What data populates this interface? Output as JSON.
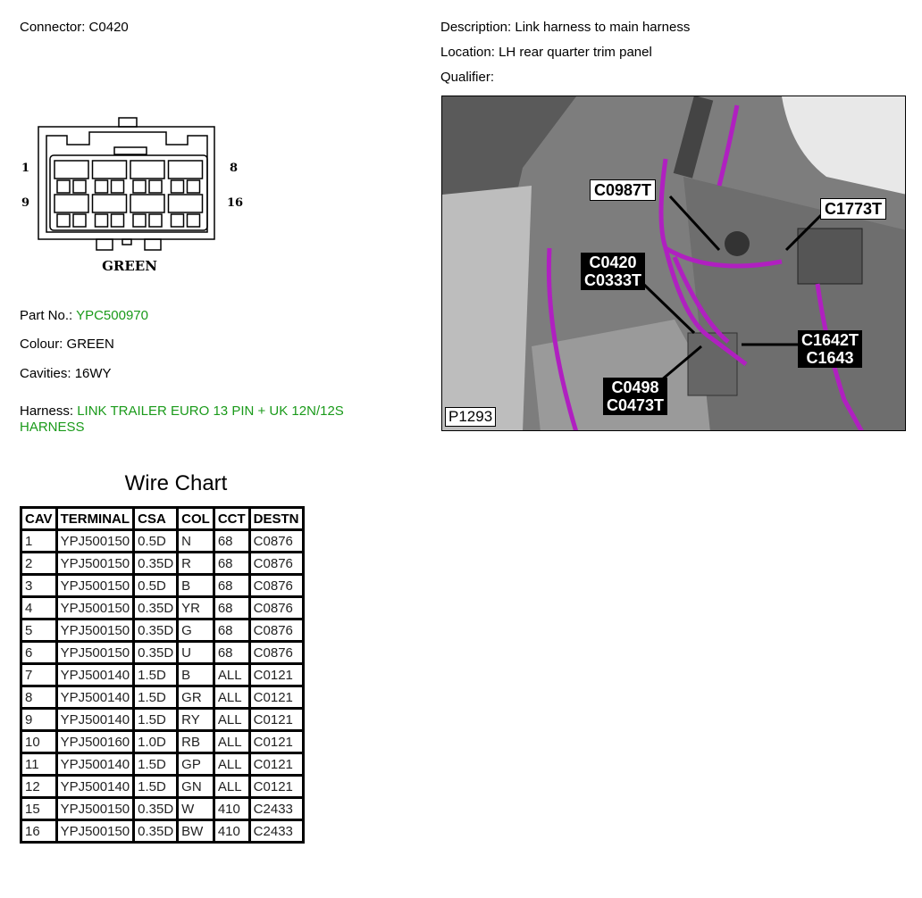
{
  "connector": {
    "label": "Connector:",
    "value": "C0420",
    "pin_labels": [
      "1",
      "8",
      "9",
      "16"
    ],
    "colour_caption": "GREEN"
  },
  "description": {
    "label": "Description:",
    "value": "Link harness to main harness"
  },
  "location": {
    "label": "Location:",
    "value": "LH rear quarter trim panel"
  },
  "qualifier": {
    "label": "Qualifier:",
    "value": ""
  },
  "part_no": {
    "label": "Part No.:",
    "value": "YPC500970"
  },
  "colour": {
    "label": "Colour:",
    "value": "GREEN"
  },
  "cavities": {
    "label": "Cavities:",
    "value": "16WY"
  },
  "harness": {
    "label": "Harness:",
    "value_line1": "LINK TRAILER EURO 13 PIN + UK 12N/12S",
    "value_line2": "HARNESS"
  },
  "photo": {
    "ref": "P1293",
    "labels": [
      {
        "lines": [
          "C0987T"
        ],
        "style": "white"
      },
      {
        "lines": [
          "C1773T"
        ],
        "style": "white"
      },
      {
        "lines": [
          "C0420",
          "C0333T"
        ],
        "style": "black"
      },
      {
        "lines": [
          "C1642T",
          "C1643"
        ],
        "style": "black"
      },
      {
        "lines": [
          "C0498",
          "C0473T"
        ],
        "style": "black"
      }
    ],
    "colors": {
      "harness": "#b020c0",
      "body": "#8a8a8a"
    }
  },
  "wire_chart": {
    "title": "Wire Chart",
    "columns": [
      "CAV",
      "TERMINAL",
      "CSA",
      "COL",
      "CCT",
      "DESTN"
    ],
    "rows": [
      [
        "1",
        "YPJ500150",
        "0.5D",
        "N",
        "68",
        "C0876"
      ],
      [
        "2",
        "YPJ500150",
        "0.35D",
        "R",
        "68",
        "C0876"
      ],
      [
        "3",
        "YPJ500150",
        "0.5D",
        "B",
        "68",
        "C0876"
      ],
      [
        "4",
        "YPJ500150",
        "0.35D",
        "YR",
        "68",
        "C0876"
      ],
      [
        "5",
        "YPJ500150",
        "0.35D",
        "G",
        "68",
        "C0876"
      ],
      [
        "6",
        "YPJ500150",
        "0.35D",
        "U",
        "68",
        "C0876"
      ],
      [
        "7",
        "YPJ500140",
        "1.5D",
        "B",
        "ALL",
        "C0121"
      ],
      [
        "8",
        "YPJ500140",
        "1.5D",
        "GR",
        "ALL",
        "C0121"
      ],
      [
        "9",
        "YPJ500140",
        "1.5D",
        "RY",
        "ALL",
        "C0121"
      ],
      [
        "10",
        "YPJ500160",
        "1.0D",
        "RB",
        "ALL",
        "C0121"
      ],
      [
        "11",
        "YPJ500140",
        "1.5D",
        "GP",
        "ALL",
        "C0121"
      ],
      [
        "12",
        "YPJ500140",
        "1.5D",
        "GN",
        "ALL",
        "C0121"
      ],
      [
        "15",
        "YPJ500150",
        "0.35D",
        "W",
        "410",
        "C2433"
      ],
      [
        "16",
        "YPJ500150",
        "0.35D",
        "BW",
        "410",
        "C2433"
      ]
    ]
  }
}
